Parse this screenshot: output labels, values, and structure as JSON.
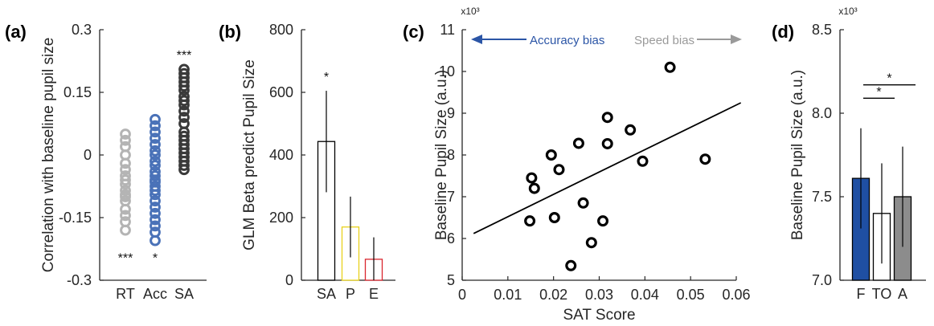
{
  "chart_data": [
    {
      "panel_label": "(a)",
      "type": "scatter",
      "ylabel": "Correlation with baseline pupil size",
      "categories": [
        "RT",
        "Acc",
        "SA"
      ],
      "ylim": [
        -0.3,
        0.3
      ],
      "yticks": [
        -0.3,
        -0.15,
        0,
        0.15,
        0.3
      ],
      "ytick_labels": [
        "-0.3",
        "-0.15",
        "0",
        "0.15",
        "0.3"
      ],
      "series": [
        {
          "category": "RT",
          "color": "#b4b4b4",
          "values": [
            0.05,
            0.035,
            0.02,
            0.0,
            -0.02,
            -0.035,
            -0.05,
            -0.06,
            -0.07,
            -0.085,
            -0.095,
            -0.1,
            -0.11,
            -0.13,
            -0.145,
            -0.16,
            -0.18
          ]
        },
        {
          "category": "Acc",
          "color": "#4a72b8",
          "values": [
            0.085,
            0.07,
            0.055,
            0.04,
            0.025,
            0.01,
            0.0,
            -0.015,
            -0.025,
            -0.04,
            -0.05,
            -0.06,
            -0.065,
            -0.075,
            -0.085,
            -0.095,
            -0.11,
            -0.125,
            -0.14,
            -0.155,
            -0.17,
            -0.185,
            -0.205
          ]
        },
        {
          "category": "SA",
          "color": "#3a3a3a",
          "values": [
            0.205,
            0.195,
            0.185,
            0.175,
            0.165,
            0.155,
            0.14,
            0.13,
            0.12,
            0.105,
            0.09,
            0.075,
            0.055,
            0.045,
            0.035,
            0.025,
            0.015,
            0.005,
            -0.005,
            -0.015,
            -0.025,
            -0.035
          ]
        }
      ],
      "significance": [
        {
          "category": "RT",
          "text": "***",
          "y": -0.245
        },
        {
          "category": "Acc",
          "text": "*",
          "y": -0.245
        },
        {
          "category": "SA",
          "text": "***",
          "y": 0.24
        }
      ]
    },
    {
      "panel_label": "(b)",
      "type": "bar",
      "ylabel": "GLM Beta predict Pupil Size",
      "categories": [
        "SA",
        "P",
        "E"
      ],
      "values": [
        443,
        170,
        67
      ],
      "error": [
        162,
        97,
        70
      ],
      "bar_edge_colors": [
        "#000000",
        "#e8d21d",
        "#d9262e"
      ],
      "ylim": [
        0,
        800
      ],
      "yticks": [
        0,
        200,
        400,
        600,
        800
      ],
      "ytick_labels": [
        "0",
        "200",
        "400",
        "600",
        "800"
      ],
      "significance": [
        {
          "category": "SA",
          "text": "*"
        }
      ]
    },
    {
      "panel_label": "(c)",
      "type": "scatter",
      "xlabel": "SAT Score",
      "ylabel": "Baseline Pupil Size (a.u.)",
      "y_multiplier": "x10³",
      "xlim": [
        0,
        0.06
      ],
      "ylim": [
        5,
        11
      ],
      "xticks": [
        0,
        0.01,
        0.02,
        0.03,
        0.04,
        0.05,
        0.06
      ],
      "xtick_labels": [
        "0",
        "0.01",
        "0.02",
        "0.03",
        "0.04",
        "0.05",
        "0.06"
      ],
      "yticks": [
        5,
        6,
        7,
        8,
        9,
        10,
        11
      ],
      "ytick_labels": [
        "5",
        "6",
        "7",
        "8",
        "9",
        "10",
        "11"
      ],
      "points": [
        [
          0.0455,
          10.1
        ],
        [
          0.0318,
          8.9
        ],
        [
          0.0368,
          8.6
        ],
        [
          0.0395,
          7.85
        ],
        [
          0.0532,
          7.9
        ],
        [
          0.0318,
          8.27
        ],
        [
          0.0255,
          8.28
        ],
        [
          0.0195,
          8.0
        ],
        [
          0.0212,
          7.65
        ],
        [
          0.0152,
          7.45
        ],
        [
          0.0158,
          7.2
        ],
        [
          0.0265,
          6.85
        ],
        [
          0.0202,
          6.5
        ],
        [
          0.0308,
          6.42
        ],
        [
          0.0148,
          6.42
        ],
        [
          0.0283,
          5.9
        ],
        [
          0.0238,
          5.35
        ]
      ],
      "fit_line": {
        "x": [
          0.0025,
          0.061
        ],
        "y": [
          6.12,
          9.25
        ]
      },
      "annotations": [
        {
          "text": "Accuracy bias",
          "direction": "left",
          "color": "#2b55a6"
        },
        {
          "text": "Speed bias",
          "direction": "right",
          "color": "#9a9a9a"
        }
      ]
    },
    {
      "panel_label": "(d)",
      "type": "bar",
      "ylabel": "Baseline Pupil Size (a.u.)",
      "y_multiplier": "x10³",
      "categories": [
        "F",
        "TO",
        "A"
      ],
      "values": [
        7.61,
        7.4,
        7.5
      ],
      "error": [
        0.3,
        0.3,
        0.3
      ],
      "bar_fill_colors": [
        "#1f4fa3",
        "#ffffff",
        "#8c8c8c"
      ],
      "ylim": [
        7.0,
        8.5
      ],
      "yticks": [
        7.0,
        7.5,
        8.0,
        8.5
      ],
      "ytick_labels": [
        "7.0",
        "7.5",
        "8.0",
        "8.5"
      ],
      "brackets": [
        {
          "from": "F",
          "to": "TO",
          "y": 8.09,
          "text": "*"
        },
        {
          "from": "F",
          "to": "A",
          "y": 8.17,
          "text": "*"
        }
      ]
    }
  ]
}
